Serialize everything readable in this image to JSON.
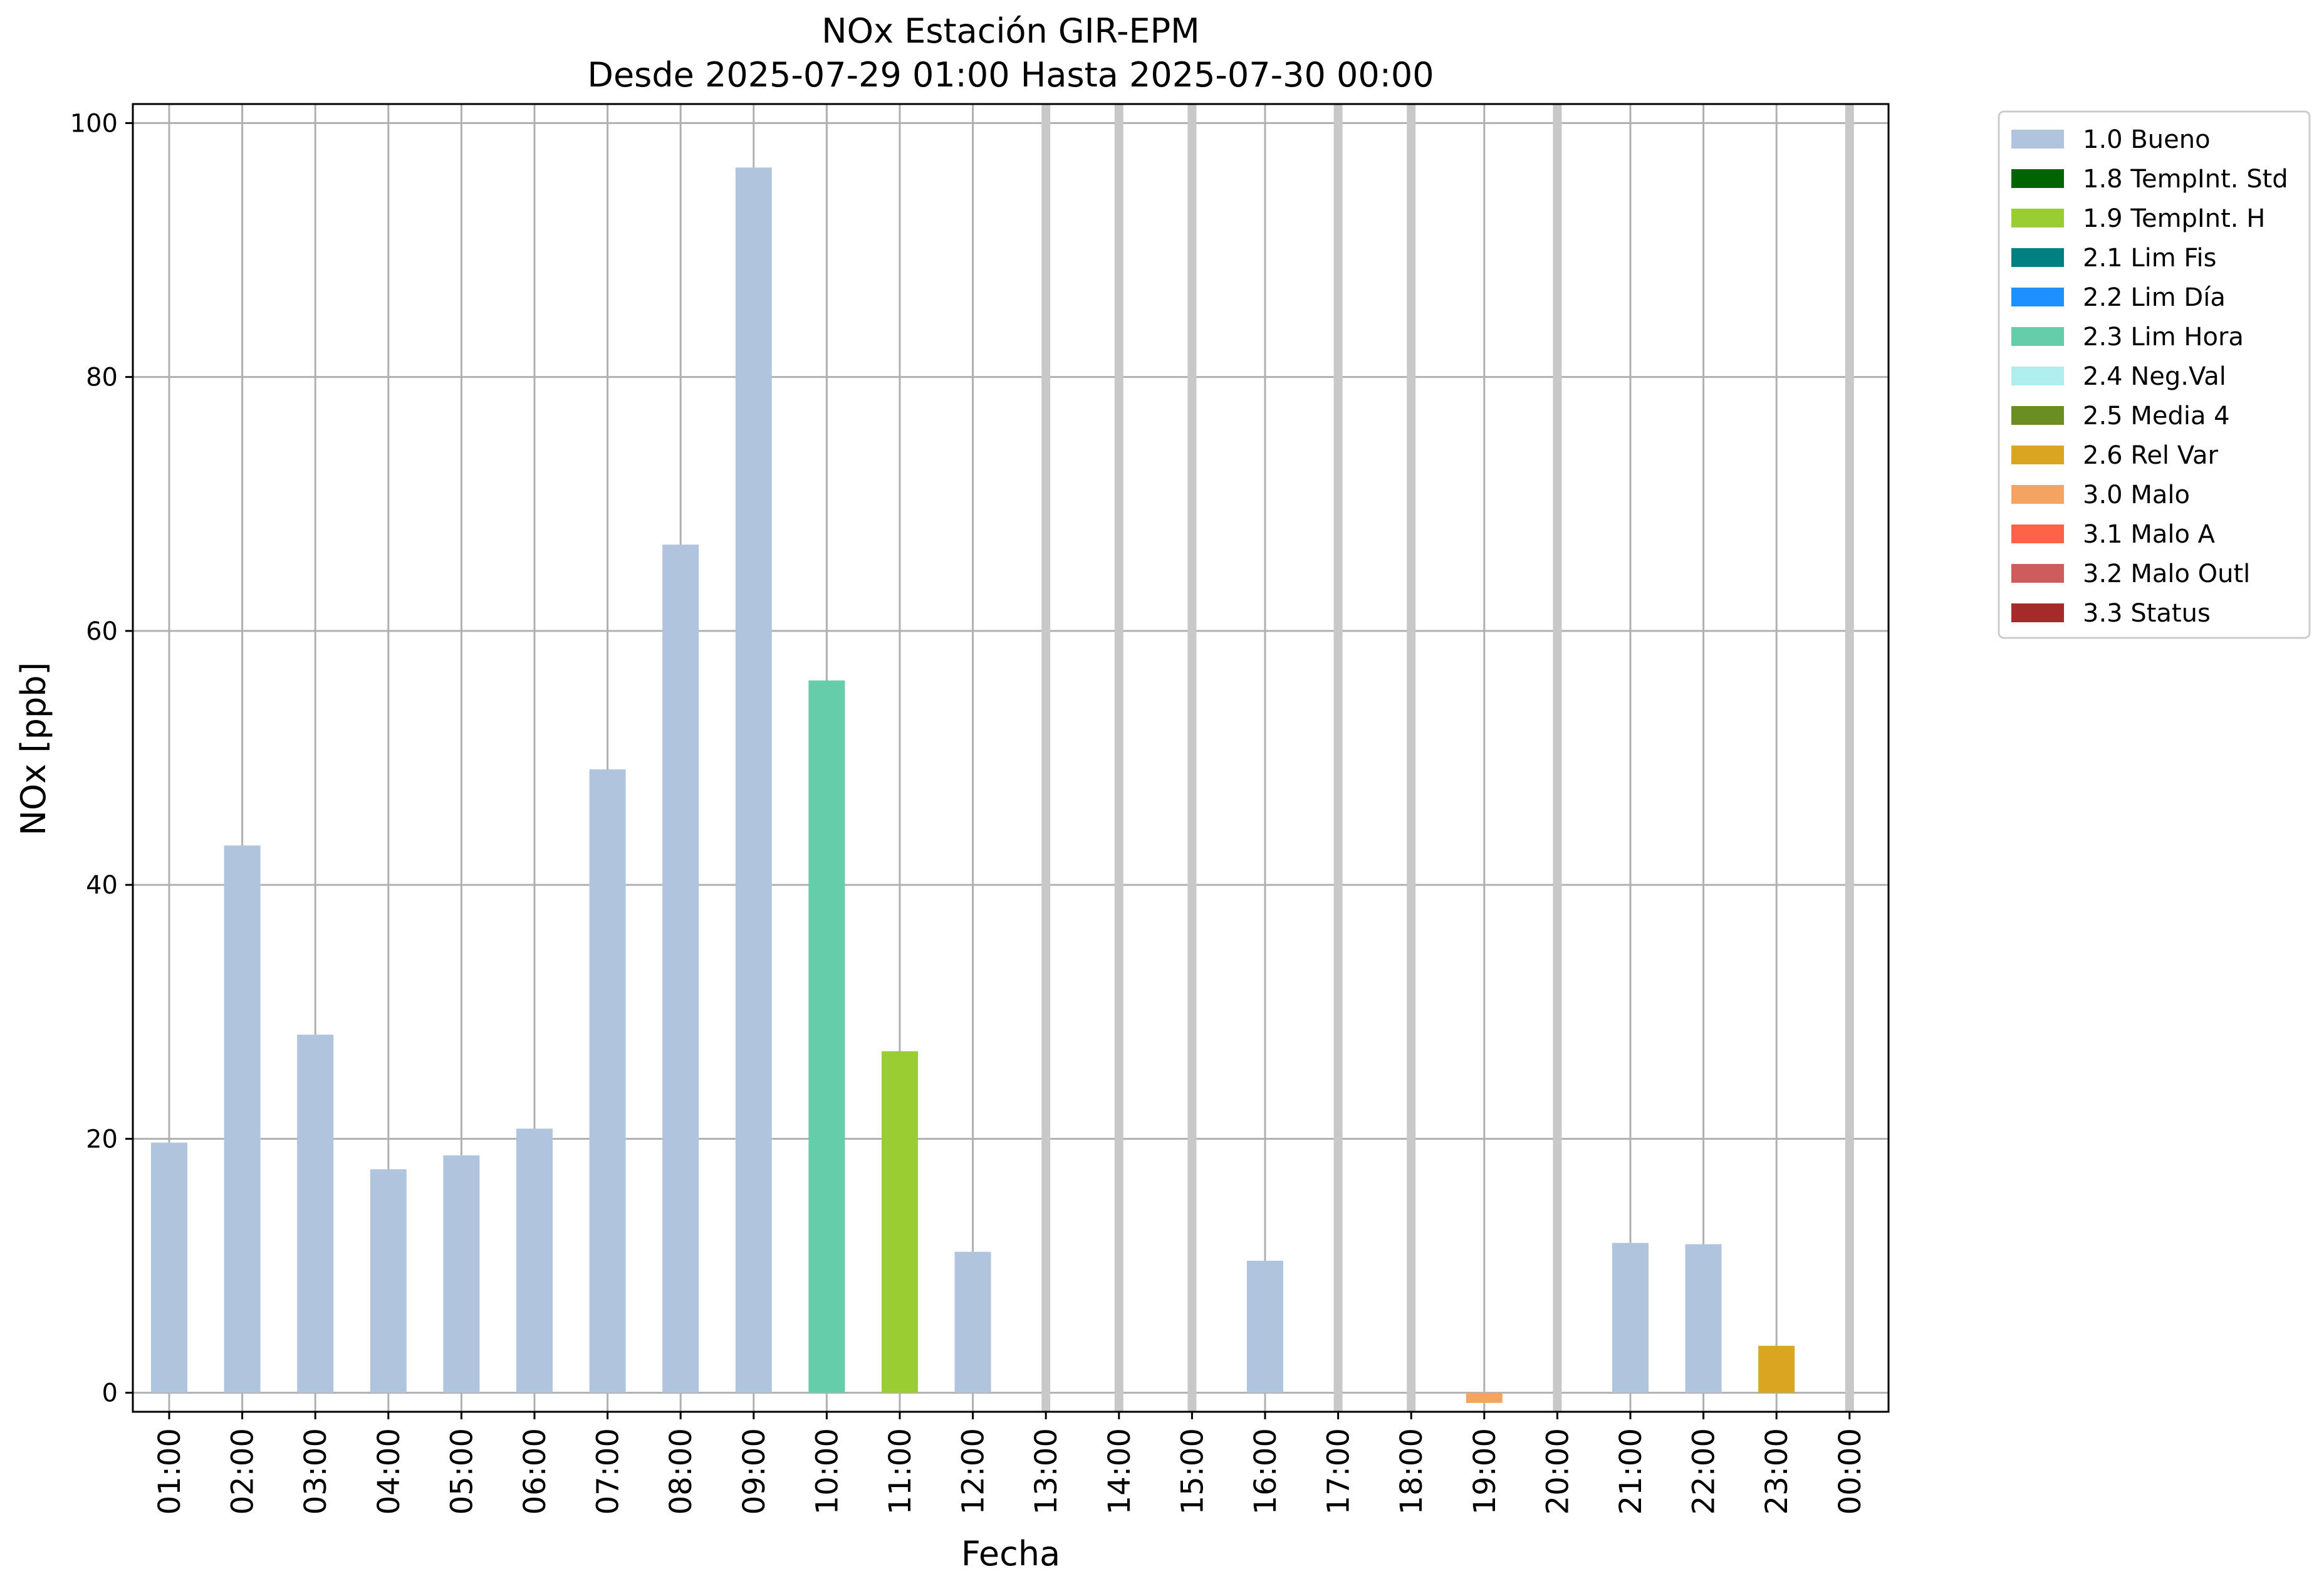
{
  "chart_data": {
    "type": "bar",
    "title": "NOx Estación GIR-EPM",
    "subtitle": "Desde 2025-07-29 01:00 Hasta 2025-07-30 00:00",
    "xlabel": "Fecha",
    "ylabel": "NOx [ppb]",
    "ylim": [
      -1.5,
      101.5
    ],
    "yticks": [
      0,
      20,
      40,
      60,
      80,
      100
    ],
    "grid": true,
    "legend_position": "outside-top-right",
    "categories": [
      "01:00",
      "02:00",
      "03:00",
      "04:00",
      "05:00",
      "06:00",
      "07:00",
      "08:00",
      "09:00",
      "10:00",
      "11:00",
      "12:00",
      "13:00",
      "14:00",
      "15:00",
      "16:00",
      "17:00",
      "18:00",
      "19:00",
      "20:00",
      "21:00",
      "22:00",
      "23:00",
      "00:00"
    ],
    "values": [
      19.7,
      43.1,
      28.2,
      17.6,
      18.7,
      20.8,
      49.1,
      66.8,
      96.5,
      56.1,
      26.9,
      11.1,
      null,
      null,
      null,
      10.4,
      null,
      null,
      -0.8,
      null,
      11.8,
      11.7,
      3.7,
      null
    ],
    "flags": [
      "1.0",
      "1.0",
      "1.0",
      "1.0",
      "1.0",
      "1.0",
      "1.0",
      "1.0",
      "1.0",
      "2.3",
      "1.9",
      "1.0",
      null,
      null,
      null,
      "1.0",
      null,
      null,
      "3.0",
      null,
      "1.0",
      "1.0",
      "2.6",
      null
    ],
    "missing_markers": [
      "13:00",
      "14:00",
      "15:00",
      "17:00",
      "18:00",
      "20:00",
      "00:00"
    ],
    "legend": [
      {
        "code": "1.0",
        "label": "1.0 Bueno",
        "color": "#b0c4de"
      },
      {
        "code": "1.8",
        "label": "1.8 TempInt. Std",
        "color": "#006400"
      },
      {
        "code": "1.9",
        "label": "1.9 TempInt. H",
        "color": "#9acd32"
      },
      {
        "code": "2.1",
        "label": "2.1 Lim Fis",
        "color": "#008080"
      },
      {
        "code": "2.2",
        "label": "2.2 Lim Día",
        "color": "#1e90ff"
      },
      {
        "code": "2.3",
        "label": "2.3 Lim Hora",
        "color": "#66cdaa"
      },
      {
        "code": "2.4",
        "label": "2.4 Neg.Val",
        "color": "#afeeee"
      },
      {
        "code": "2.5",
        "label": "2.5 Media 4",
        "color": "#6b8e23"
      },
      {
        "code": "2.6",
        "label": "2.6 Rel Var",
        "color": "#daa520"
      },
      {
        "code": "3.0",
        "label": "3.0 Malo",
        "color": "#f4a460"
      },
      {
        "code": "3.1",
        "label": "3.1 Malo A",
        "color": "#ff6347"
      },
      {
        "code": "3.2",
        "label": "3.2 Malo Outl",
        "color": "#cd5c5c"
      },
      {
        "code": "3.3",
        "label": "3.3 Status",
        "color": "#a52a2a"
      }
    ]
  }
}
